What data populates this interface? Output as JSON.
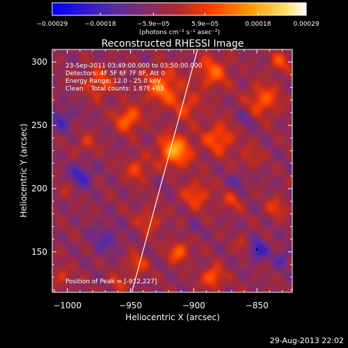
{
  "chart_data": {
    "type": "heatmap",
    "title": "Reconstructed RHESSI Image",
    "xlabel": "Heliocentric X (arcsec)",
    "ylabel": "Heliocentric Y (arcsec)",
    "xlim": [
      -1012,
      -822
    ],
    "ylim": [
      118,
      310
    ],
    "xticks": [
      -1000,
      -950,
      -900,
      -850
    ],
    "xtick_labels": [
      "−1000",
      "−950",
      "−900",
      "−850"
    ],
    "yticks": [
      150,
      200,
      250,
      300
    ],
    "ytick_labels": [
      "150",
      "200",
      "250",
      "300"
    ],
    "colorbar": {
      "range": [
        -0.00029,
        0.00029
      ],
      "ticks": [
        -0.00029,
        -0.00018,
        -5.9e-05,
        5.9e-05,
        0.00018,
        0.00029
      ],
      "tick_labels": [
        "−0.00029",
        "−0.00018",
        "−5.9e−05",
        "5.9e−05",
        "0.00018",
        "0.00029"
      ],
      "unit_label": "(photons cm⁻² s⁻¹ asec⁻²)",
      "colors": [
        "#0000ff",
        "#5a2ca0",
        "#b02a2a",
        "#ff3a00",
        "#ff9a00",
        "#ffe070",
        "#ffffff"
      ]
    },
    "annotations": {
      "time_range": "23-Sep-2011 03:49:00.000 to 03:50:00.000",
      "detectors": "Detectors: 4F 5F 6F 7F 8F, Att 0",
      "energy": "Energy Range: 12.0 - 25.0 keV",
      "clean": "Clean    Total counts: 1.87E+03",
      "peak": "Position of Peak = [-912,227]"
    },
    "limb_line": {
      "x": [
        -949,
        -897
      ],
      "y": [
        118,
        310
      ]
    },
    "peak": {
      "x": -912,
      "y": 227
    },
    "blobs": [
      {
        "x": -915,
        "y": 230,
        "s": 9,
        "a": 0.00022
      },
      {
        "x": -925,
        "y": 280,
        "s": 10,
        "a": 0.00016
      },
      {
        "x": -975,
        "y": 283,
        "s": 8,
        "a": 0.00012
      },
      {
        "x": -885,
        "y": 292,
        "s": 9,
        "a": 0.00014
      },
      {
        "x": -905,
        "y": 265,
        "s": 8,
        "a": 0.0001
      },
      {
        "x": -952,
        "y": 255,
        "s": 7,
        "a": 0.00017
      },
      {
        "x": -985,
        "y": 235,
        "s": 6,
        "a": 8e-05
      },
      {
        "x": -880,
        "y": 240,
        "s": 9,
        "a": 0.00014
      },
      {
        "x": -845,
        "y": 270,
        "s": 9,
        "a": 0.00014
      },
      {
        "x": -832,
        "y": 300,
        "s": 6,
        "a": 0.00011
      },
      {
        "x": -855,
        "y": 225,
        "s": 6,
        "a": 8e-05
      },
      {
        "x": -945,
        "y": 215,
        "s": 7,
        "a": 0.00011
      },
      {
        "x": -898,
        "y": 195,
        "s": 8,
        "a": 0.00012
      },
      {
        "x": -935,
        "y": 175,
        "s": 7,
        "a": 0.0001
      },
      {
        "x": -870,
        "y": 190,
        "s": 6,
        "a": 9e-05
      },
      {
        "x": -912,
        "y": 150,
        "s": 6,
        "a": 0.00015
      },
      {
        "x": -885,
        "y": 130,
        "s": 6,
        "a": 0.00016
      },
      {
        "x": -945,
        "y": 140,
        "s": 6,
        "a": 0.00011
      },
      {
        "x": -960,
        "y": 125,
        "s": 5,
        "a": 9e-05
      },
      {
        "x": -860,
        "y": 155,
        "s": 5,
        "a": 9e-05
      },
      {
        "x": -835,
        "y": 185,
        "s": 6,
        "a": 0.0001
      },
      {
        "x": -1005,
        "y": 130,
        "s": 6,
        "a": 8e-05
      },
      {
        "x": -1000,
        "y": 200,
        "s": 5,
        "a": 6e-05
      },
      {
        "x": -990,
        "y": 210,
        "s": 7,
        "a": -0.00013
      },
      {
        "x": -1005,
        "y": 255,
        "s": 7,
        "a": -0.0001
      },
      {
        "x": -970,
        "y": 160,
        "s": 8,
        "a": -9e-05
      },
      {
        "x": -850,
        "y": 152,
        "s": 6,
        "a": -0.00015
      },
      {
        "x": -830,
        "y": 145,
        "s": 5,
        "a": -0.0001
      },
      {
        "x": -865,
        "y": 205,
        "s": 5,
        "a": -8e-05
      },
      {
        "x": -860,
        "y": 255,
        "s": 5,
        "a": -7e-05
      },
      {
        "x": -920,
        "y": 205,
        "s": 4,
        "a": -4e-05
      },
      {
        "x": -900,
        "y": 168,
        "s": 4,
        "a": -5e-05
      }
    ]
  },
  "footer_timestamp": "29-Aug-2013 22:02"
}
